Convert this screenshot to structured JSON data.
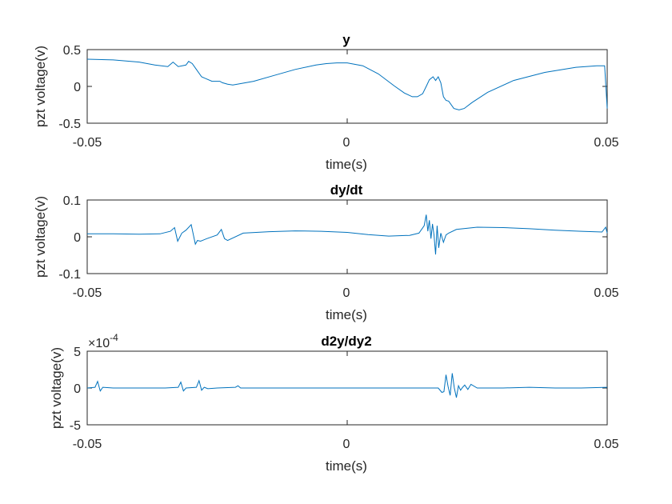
{
  "chart_data": [
    {
      "type": "line",
      "title": "y",
      "xlabel": "time(s)",
      "ylabel": "pzt voltage(v)",
      "xlim": [
        -0.05,
        0.05
      ],
      "ylim": [
        -0.5,
        0.5
      ],
      "xticks": [
        "-0.05",
        "0",
        "0.05"
      ],
      "yticks": [
        "0.5",
        "0",
        "-0.5"
      ],
      "ytick_values": [
        0.5,
        0,
        -0.5
      ],
      "color": "#0072BD",
      "series": [
        {
          "x": [
            -0.05,
            -0.045,
            -0.04,
            -0.037,
            -0.0345,
            -0.0335,
            -0.0325,
            -0.031,
            -0.0305,
            -0.0298,
            -0.029,
            -0.028,
            -0.026,
            -0.0245,
            -0.024,
            -0.023,
            -0.022,
            -0.018,
            -0.014,
            -0.01,
            -0.006,
            -0.004,
            -0.002,
            0.0,
            0.003,
            0.006,
            0.009,
            0.011,
            0.0125,
            0.0135,
            0.0145,
            0.0152,
            0.0158,
            0.0165,
            0.017,
            0.0175,
            0.018,
            0.0185,
            0.019,
            0.0195,
            0.0205,
            0.0215,
            0.0225,
            0.024,
            0.027,
            0.032,
            0.038,
            0.044,
            0.048,
            0.0495,
            0.05
          ],
          "y": [
            0.37,
            0.36,
            0.33,
            0.29,
            0.27,
            0.33,
            0.27,
            0.29,
            0.34,
            0.31,
            0.23,
            0.13,
            0.07,
            0.07,
            0.05,
            0.03,
            0.02,
            0.07,
            0.15,
            0.23,
            0.29,
            0.31,
            0.32,
            0.32,
            0.28,
            0.17,
            0.01,
            -0.09,
            -0.14,
            -0.14,
            -0.1,
            0.0,
            0.09,
            0.13,
            0.08,
            0.13,
            0.05,
            -0.14,
            -0.19,
            -0.2,
            -0.3,
            -0.32,
            -0.3,
            -0.22,
            -0.08,
            0.08,
            0.19,
            0.26,
            0.28,
            0.28,
            -0.3
          ]
        }
      ]
    },
    {
      "type": "line",
      "title": "dy/dt",
      "xlabel": "time(s)",
      "ylabel": "pzt voltage(v)",
      "xlim": [
        -0.05,
        0.05
      ],
      "ylim": [
        -0.1,
        0.1
      ],
      "xticks": [
        "-0.05",
        "0",
        "0.05"
      ],
      "yticks": [
        "0.1",
        "0",
        "-0.1"
      ],
      "ytick_values": [
        0.1,
        0,
        -0.1
      ],
      "color": "#0072BD",
      "series": [
        {
          "x": [
            -0.05,
            -0.045,
            -0.04,
            -0.036,
            -0.034,
            -0.0332,
            -0.0326,
            -0.0318,
            -0.031,
            -0.03,
            -0.0292,
            -0.0288,
            -0.0282,
            -0.027,
            -0.025,
            -0.0242,
            -0.0236,
            -0.023,
            -0.02,
            -0.015,
            -0.01,
            -0.005,
            0.0,
            0.004,
            0.008,
            0.012,
            0.0138,
            0.0148,
            0.0152,
            0.0155,
            0.0158,
            0.0161,
            0.0164,
            0.0167,
            0.017,
            0.0173,
            0.0176,
            0.018,
            0.0185,
            0.019,
            0.0195,
            0.021,
            0.025,
            0.03,
            0.035,
            0.04,
            0.045,
            0.049,
            0.0497,
            0.05
          ],
          "y": [
            0.008,
            0.008,
            0.007,
            0.008,
            0.015,
            0.025,
            -0.012,
            0.01,
            0.018,
            0.033,
            -0.02,
            -0.01,
            -0.012,
            -0.005,
            0.005,
            0.02,
            -0.005,
            -0.01,
            0.01,
            0.014,
            0.016,
            0.015,
            0.012,
            0.006,
            0.002,
            0.004,
            0.01,
            0.03,
            0.06,
            0.015,
            0.045,
            -0.005,
            0.035,
            0.005,
            -0.048,
            0.03,
            -0.03,
            0.01,
            -0.015,
            0.005,
            0.01,
            0.02,
            0.026,
            0.025,
            0.022,
            0.018,
            0.015,
            0.013,
            0.026,
            0.01
          ]
        }
      ]
    },
    {
      "type": "line",
      "title": "d2y/dy2",
      "xlabel": "time(s)",
      "ylabel": "pzt voltage(v)",
      "xlim": [
        -0.05,
        0.05
      ],
      "ylim": [
        -5,
        5
      ],
      "xticks": [
        "-0.05",
        "0",
        "0.05"
      ],
      "yticks": [
        "5",
        "0",
        "-5"
      ],
      "ytick_values": [
        5,
        0,
        -5
      ],
      "exponent_label": "×10",
      "exponent_value": "-4",
      "color": "#0072BD",
      "series": [
        {
          "x": [
            -0.05,
            -0.0485,
            -0.048,
            -0.0475,
            -0.047,
            -0.045,
            -0.04,
            -0.035,
            -0.0325,
            -0.032,
            -0.0315,
            -0.031,
            -0.029,
            -0.0285,
            -0.028,
            -0.0275,
            -0.0268,
            -0.025,
            -0.0215,
            -0.021,
            -0.0205,
            -0.015,
            -0.01,
            -0.005,
            0.0,
            0.005,
            0.01,
            0.015,
            0.0175,
            0.0182,
            0.0186,
            0.019,
            0.0194,
            0.0198,
            0.0202,
            0.0206,
            0.021,
            0.0214,
            0.0218,
            0.0222,
            0.0226,
            0.0232,
            0.0238,
            0.025,
            0.03,
            0.035,
            0.04,
            0.045,
            0.05
          ],
          "y": [
            0.0,
            0.1,
            0.9,
            -0.4,
            0.1,
            0.0,
            0.0,
            0.0,
            0.1,
            0.8,
            -0.4,
            0.0,
            0.1,
            1.0,
            -0.3,
            0.1,
            -0.1,
            0.0,
            0.1,
            0.3,
            0.0,
            0.0,
            0.0,
            0.0,
            0.0,
            0.0,
            0.0,
            0.0,
            0.0,
            -0.6,
            -0.5,
            1.8,
            0.2,
            -1.0,
            2.0,
            0.0,
            -1.3,
            0.3,
            -0.3,
            0.1,
            0.4,
            -0.2,
            0.5,
            0.0,
            0.0,
            0.1,
            0.0,
            0.0,
            0.1
          ]
        }
      ]
    }
  ]
}
